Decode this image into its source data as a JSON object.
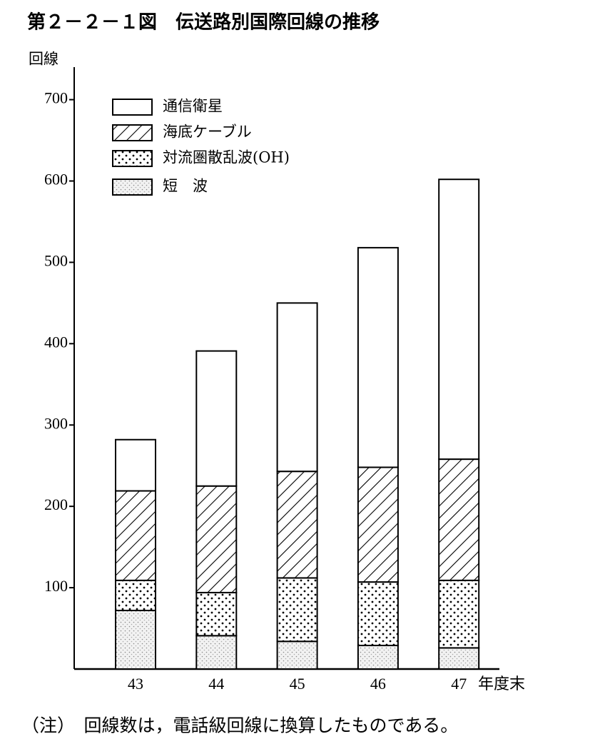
{
  "chart_data": {
    "type": "stacked_bar",
    "title": "第２－２－１図　伝送路別国際回線の推移",
    "y_label": "回線",
    "x_label": "年度末",
    "note": "（注）　回線数は，電話級回線に換算したものである。",
    "categories": [
      "43",
      "44",
      "45",
      "46",
      "47"
    ],
    "series": [
      {
        "name": "通信衛星",
        "color": "#ffffff",
        "pattern": "solid",
        "values": [
          63,
          166,
          207,
          270,
          344
        ]
      },
      {
        "name": "海底ケーブル",
        "color": "#000000",
        "pattern": "hatch",
        "values": [
          110,
          131,
          131,
          141,
          149
        ]
      },
      {
        "name": "対流圏散乱波(OH)",
        "color": "#000000",
        "pattern": "dots",
        "values": [
          37,
          53,
          78,
          78,
          83
        ]
      },
      {
        "name": "短　波",
        "color": "#888888",
        "pattern": "fine-dots",
        "values": [
          72,
          41,
          34,
          29,
          26
        ]
      }
    ],
    "ylim": [
      0,
      740
    ],
    "yticks": [
      100,
      200,
      300,
      400,
      500,
      600,
      700
    ],
    "legend": "upper left"
  }
}
